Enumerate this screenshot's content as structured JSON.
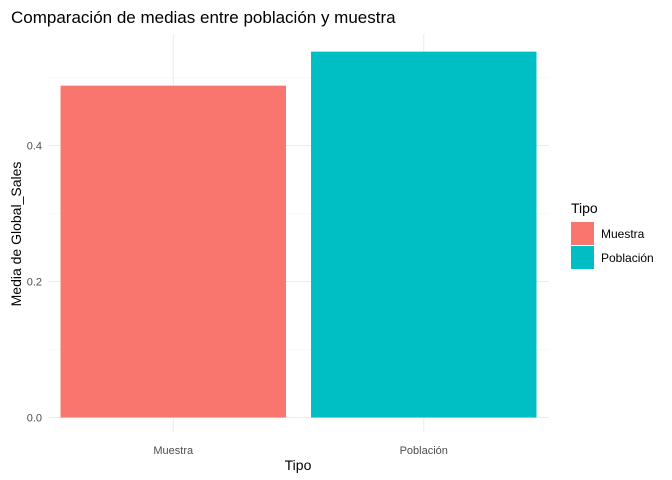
{
  "chart_data": {
    "type": "bar",
    "title": "Comparación de medias entre población y muestra",
    "xlabel": "Tipo",
    "ylabel": "Media de Global_Sales",
    "categories": [
      "Muestra",
      "Población"
    ],
    "values": [
      0.488,
      0.538
    ],
    "colors": [
      "#F8766D",
      "#00BFC4"
    ],
    "ylim": [
      0,
      0.55
    ],
    "yticks": [
      0.0,
      0.2,
      0.4
    ],
    "ytick_labels": [
      "0.0",
      "0.2",
      "0.4"
    ],
    "grid": true,
    "legend": {
      "title": "Tipo",
      "placement": "right",
      "items": [
        {
          "label": "Muestra",
          "color": "#F8766D"
        },
        {
          "label": "Población",
          "color": "#00BFC4"
        }
      ]
    }
  }
}
